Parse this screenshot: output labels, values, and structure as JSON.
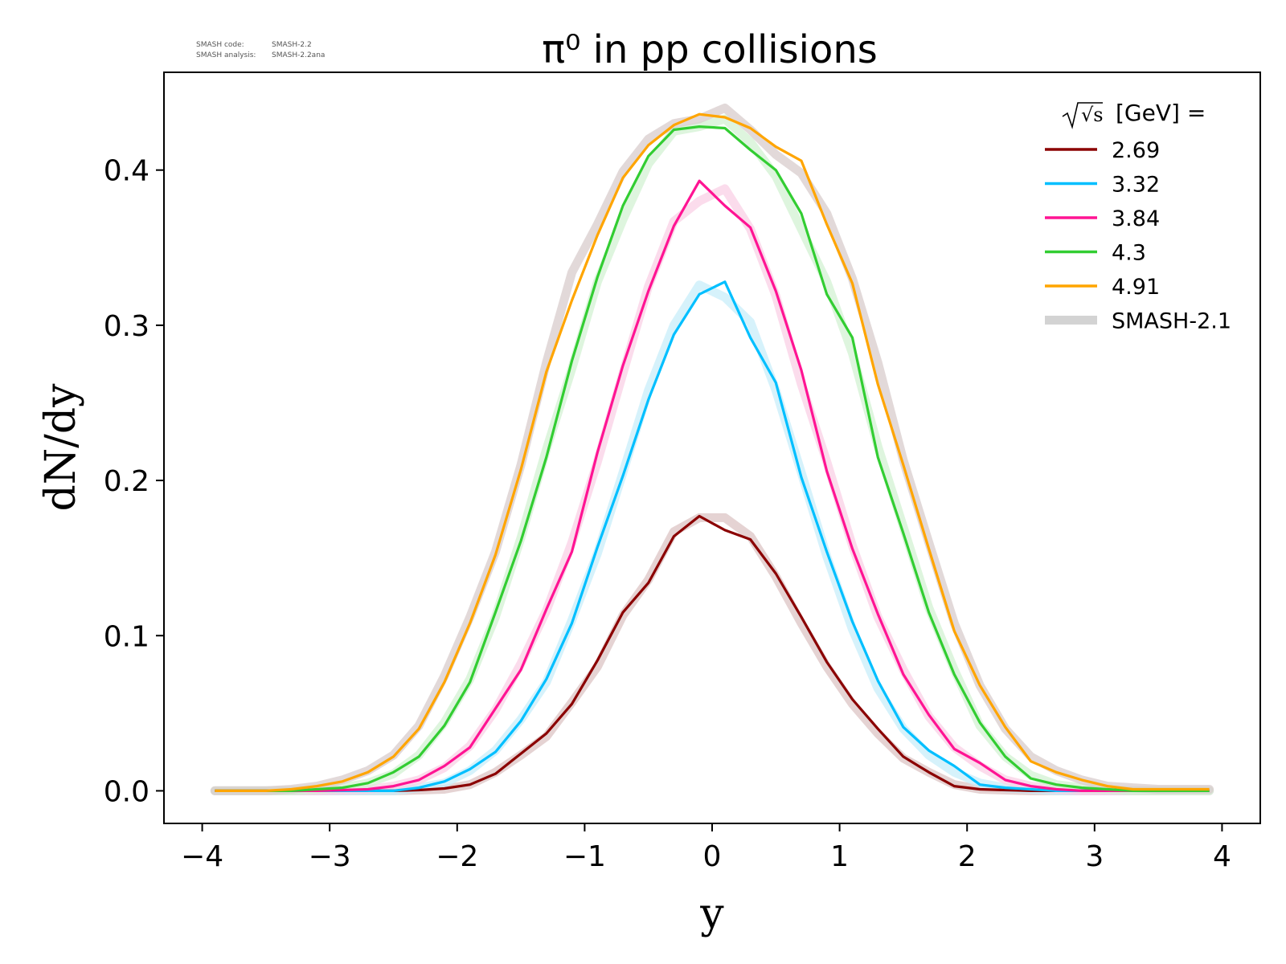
{
  "watermark": {
    "code_label": "SMASH code:",
    "code_value": "SMASH-2.2",
    "analysis_label": "SMASH analysis:",
    "analysis_value": "SMASH-2.2ana"
  },
  "chart_data": {
    "type": "line",
    "title": "π⁰ in pp collisions",
    "xlabel": "y",
    "ylabel": "dN/dy",
    "xlim": [
      -4.3,
      4.3
    ],
    "ylim": [
      -0.021,
      0.463
    ],
    "xticks": [
      -4,
      -3,
      -2,
      -1,
      0,
      1,
      2,
      3,
      4
    ],
    "xtick_labels": [
      "−4",
      "−3",
      "−2",
      "−1",
      "0",
      "1",
      "2",
      "3",
      "4"
    ],
    "yticks": [
      0.0,
      0.1,
      0.2,
      0.3,
      0.4
    ],
    "ytick_labels": [
      "0.0",
      "0.1",
      "0.2",
      "0.3",
      "0.4"
    ],
    "grid": false,
    "legend": {
      "position": "top-right",
      "title_symbol": "√s",
      "title_text": "[GeV] =",
      "reference_label": "SMASH-2.1",
      "reference_color": "#d3d3d3"
    },
    "x": [
      -3.9,
      -3.7,
      -3.5,
      -3.3,
      -3.1,
      -2.9,
      -2.7,
      -2.5,
      -2.3,
      -2.1,
      -1.9,
      -1.7,
      -1.5,
      -1.3,
      -1.1,
      -0.9,
      -0.7,
      -0.5,
      -0.3,
      -0.1,
      0.1,
      0.3,
      0.5,
      0.7,
      0.9,
      1.1,
      1.3,
      1.5,
      1.7,
      1.9,
      2.1,
      2.3,
      2.5,
      2.7,
      2.9,
      3.1,
      3.3,
      3.5,
      3.7,
      3.9
    ],
    "series": [
      {
        "name": "2.69",
        "color": "#8b0000",
        "values": [
          0,
          0,
          0,
          0,
          0,
          0,
          0,
          0,
          0.0005,
          0.0015,
          0.004,
          0.011,
          0.024,
          0.037,
          0.056,
          0.084,
          0.115,
          0.134,
          0.164,
          0.177,
          0.168,
          0.162,
          0.14,
          0.112,
          0.083,
          0.059,
          0.04,
          0.022,
          0.012,
          0.003,
          0.001,
          0.0005,
          0,
          0,
          0,
          0,
          0,
          0,
          0,
          0
        ],
        "reference": [
          0,
          0,
          0,
          0,
          0,
          0,
          0,
          0,
          0.0005,
          0.001,
          0.004,
          0.012,
          0.023,
          0.035,
          0.057,
          0.08,
          0.113,
          0.136,
          0.167,
          0.176,
          0.176,
          0.164,
          0.138,
          0.108,
          0.08,
          0.056,
          0.037,
          0.021,
          0.012,
          0.004,
          0.001,
          0.0005,
          0,
          0,
          0,
          0,
          0,
          0,
          0,
          0
        ],
        "ref_color": "#dcc4c4"
      },
      {
        "name": "3.32",
        "color": "#00bfff",
        "values": [
          0,
          0,
          0,
          0,
          0,
          0,
          0,
          0,
          0.002,
          0.006,
          0.014,
          0.025,
          0.045,
          0.072,
          0.108,
          0.157,
          0.203,
          0.252,
          0.294,
          0.32,
          0.328,
          0.292,
          0.263,
          0.202,
          0.154,
          0.109,
          0.071,
          0.041,
          0.026,
          0.016,
          0.004,
          0.002,
          0.001,
          0,
          0,
          0,
          0,
          0,
          0,
          0
        ],
        "reference": [
          0,
          0,
          0,
          0,
          0,
          0,
          0,
          0,
          0.002,
          0.005,
          0.013,
          0.026,
          0.046,
          0.07,
          0.11,
          0.153,
          0.205,
          0.258,
          0.3,
          0.326,
          0.318,
          0.302,
          0.258,
          0.205,
          0.151,
          0.104,
          0.066,
          0.04,
          0.023,
          0.012,
          0.005,
          0.002,
          0.001,
          0,
          0,
          0,
          0,
          0,
          0,
          0
        ],
        "ref_color": "#c8eef9"
      },
      {
        "name": "3.84",
        "color": "#ff1493",
        "values": [
          0,
          0,
          0,
          0,
          0,
          0.0005,
          0.001,
          0.003,
          0.007,
          0.016,
          0.028,
          0.053,
          0.078,
          0.117,
          0.154,
          0.218,
          0.274,
          0.322,
          0.364,
          0.393,
          0.377,
          0.363,
          0.322,
          0.271,
          0.206,
          0.156,
          0.114,
          0.075,
          0.049,
          0.027,
          0.018,
          0.007,
          0.003,
          0.001,
          0,
          0,
          0,
          0,
          0,
          0
        ],
        "reference": [
          0,
          0,
          0,
          0,
          0,
          0.0005,
          0.001,
          0.003,
          0.007,
          0.015,
          0.029,
          0.052,
          0.082,
          0.116,
          0.16,
          0.212,
          0.269,
          0.325,
          0.367,
          0.38,
          0.388,
          0.362,
          0.319,
          0.262,
          0.212,
          0.158,
          0.112,
          0.078,
          0.048,
          0.028,
          0.016,
          0.007,
          0.003,
          0.001,
          0,
          0,
          0,
          0,
          0,
          0
        ],
        "ref_color": "#fad0e6"
      },
      {
        "name": "4.3",
        "color": "#32cd32",
        "values": [
          0,
          0,
          0,
          0,
          0.001,
          0.002,
          0.005,
          0.012,
          0.022,
          0.042,
          0.07,
          0.115,
          0.161,
          0.215,
          0.277,
          0.331,
          0.377,
          0.409,
          0.426,
          0.428,
          0.427,
          0.413,
          0.4,
          0.372,
          0.32,
          0.292,
          0.215,
          0.166,
          0.115,
          0.075,
          0.044,
          0.022,
          0.008,
          0.004,
          0.002,
          0.001,
          0,
          0,
          0,
          0
        ],
        "reference": [
          0,
          0,
          0,
          0,
          0.001,
          0.002,
          0.005,
          0.011,
          0.023,
          0.044,
          0.072,
          0.112,
          0.163,
          0.22,
          0.272,
          0.328,
          0.368,
          0.404,
          0.425,
          0.428,
          0.433,
          0.418,
          0.396,
          0.362,
          0.328,
          0.282,
          0.222,
          0.17,
          0.118,
          0.078,
          0.042,
          0.022,
          0.01,
          0.004,
          0.002,
          0.001,
          0,
          0,
          0,
          0
        ],
        "ref_color": "#d3f2d3"
      },
      {
        "name": "4.91",
        "color": "#ffa500",
        "values": [
          0,
          0,
          0,
          0.001,
          0.003,
          0.006,
          0.012,
          0.022,
          0.04,
          0.07,
          0.108,
          0.152,
          0.207,
          0.27,
          0.316,
          0.358,
          0.395,
          0.416,
          0.429,
          0.436,
          0.434,
          0.427,
          0.415,
          0.406,
          0.365,
          0.327,
          0.262,
          0.21,
          0.156,
          0.103,
          0.068,
          0.041,
          0.019,
          0.012,
          0.007,
          0.003,
          0.001,
          0.001,
          0.001,
          0.001
        ],
        "reference": [
          0,
          0,
          0,
          0.001,
          0.003,
          0.007,
          0.013,
          0.023,
          0.042,
          0.074,
          0.112,
          0.154,
          0.21,
          0.276,
          0.334,
          0.365,
          0.399,
          0.42,
          0.43,
          0.433,
          0.44,
          0.426,
          0.41,
          0.398,
          0.372,
          0.33,
          0.276,
          0.213,
          0.16,
          0.108,
          0.068,
          0.04,
          0.022,
          0.013,
          0.007,
          0.003,
          0.002,
          0.001,
          0.001,
          0.001
        ],
        "ref_color": "#d8cccc"
      }
    ]
  }
}
